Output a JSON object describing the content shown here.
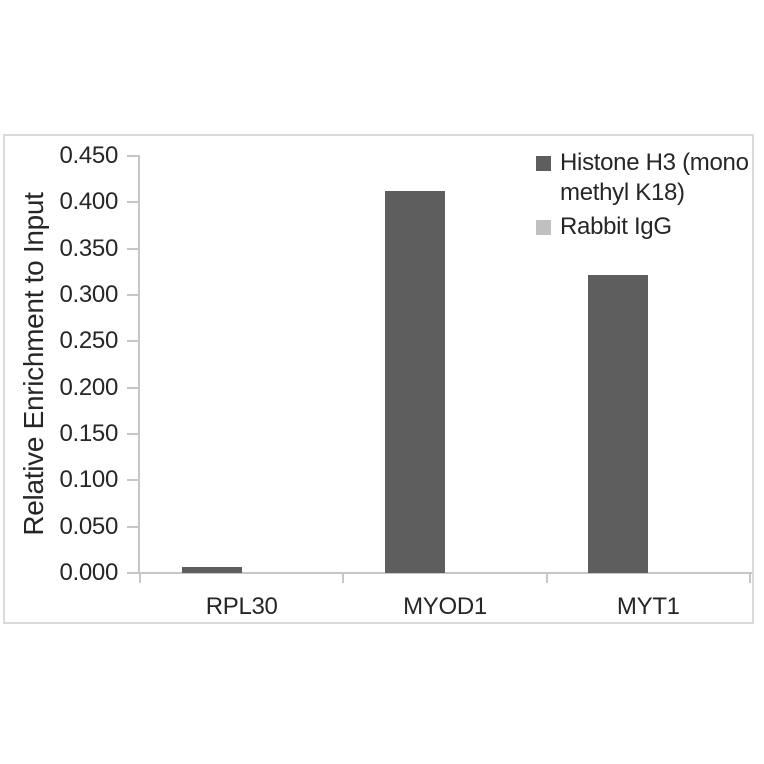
{
  "chart_data": {
    "type": "bar",
    "title": "",
    "xlabel": "",
    "ylabel": "Relative Enrichment to Input",
    "categories": [
      "RPL30",
      "MYOD1",
      "MYT1"
    ],
    "series": [
      {
        "name": "Histone H3 (mono methyl K18)",
        "color": "#5e5e5e",
        "values": [
          0.007,
          0.412,
          0.322
        ]
      },
      {
        "name": "Rabbit IgG",
        "color": "#c0c0c0",
        "values": [
          0,
          0,
          0
        ]
      }
    ],
    "ylim": [
      0,
      0.45
    ],
    "ytick_step": 0.05,
    "ytick_labels": [
      "0.000",
      "0.050",
      "0.100",
      "0.150",
      "0.200",
      "0.250",
      "0.300",
      "0.350",
      "0.400",
      "0.450"
    ],
    "grid": false,
    "legend_position": "top-right",
    "colors": {
      "bar_dark": "#5e5e5e",
      "bar_light": "#c0c0c0",
      "axis": "#c6c6c6",
      "frame_border": "#dadada",
      "text": "#262626",
      "background": "#ffffff"
    }
  }
}
